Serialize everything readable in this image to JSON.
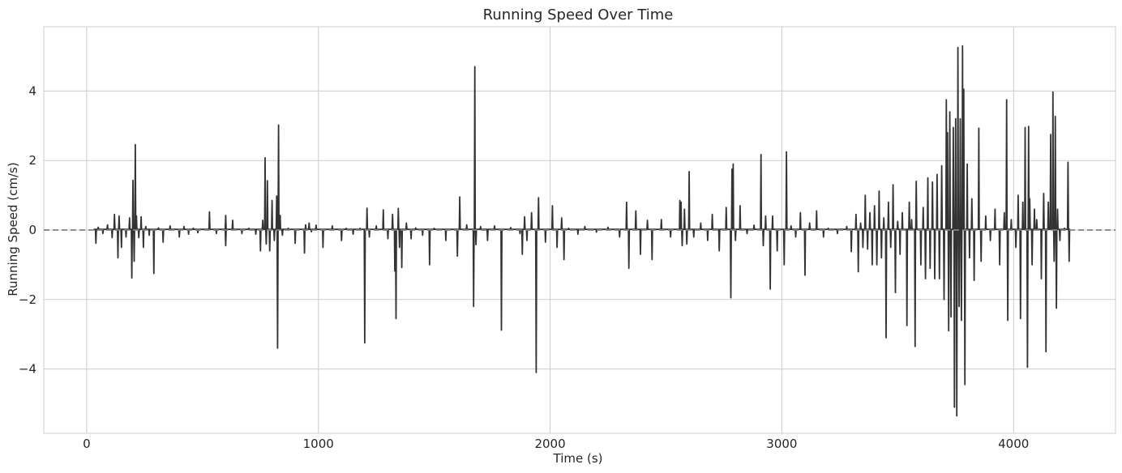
{
  "chart_data": {
    "type": "line",
    "title": "Running Speed Over Time",
    "xlabel": "Time (s)",
    "ylabel": "Running Speed (cm/s)",
    "xlim": [
      -185,
      4440
    ],
    "ylim": [
      -5.85,
      5.85
    ],
    "xticks": [
      0,
      1000,
      2000,
      3000,
      4000
    ],
    "xtick_labels": [
      "0",
      "1000",
      "2000",
      "3000",
      "4000"
    ],
    "yticks": [
      -4,
      -2,
      0,
      2,
      4
    ],
    "ytick_labels": [
      "−4",
      "−2",
      "0",
      "2",
      "4"
    ],
    "grid": true,
    "reference_line": {
      "y": 0,
      "style": "dashed",
      "color": "#808080"
    },
    "series": [
      {
        "color": "#333333",
        "spikes": [
          [
            40,
            -0.38
          ],
          [
            50,
            0.08
          ],
          [
            70,
            -0.1
          ],
          [
            90,
            0.15
          ],
          [
            110,
            -0.22
          ],
          [
            120,
            0.45
          ],
          [
            135,
            -0.8
          ],
          [
            140,
            0.4
          ],
          [
            150,
            -0.5
          ],
          [
            170,
            -0.2
          ],
          [
            185,
            0.35
          ],
          [
            195,
            -1.38
          ],
          [
            200,
            1.43
          ],
          [
            205,
            -0.9
          ],
          [
            210,
            2.46
          ],
          [
            215,
            0.4
          ],
          [
            225,
            -0.22
          ],
          [
            235,
            0.38
          ],
          [
            245,
            -0.5
          ],
          [
            255,
            0.1
          ],
          [
            270,
            -0.15
          ],
          [
            290,
            -1.25
          ],
          [
            310,
            0.06
          ],
          [
            330,
            -0.35
          ],
          [
            360,
            0.12
          ],
          [
            400,
            -0.2
          ],
          [
            420,
            0.1
          ],
          [
            440,
            -0.12
          ],
          [
            460,
            0.05
          ],
          [
            480,
            -0.08
          ],
          [
            530,
            0.52
          ],
          [
            560,
            -0.1
          ],
          [
            600,
            0.42
          ],
          [
            600,
            -0.45
          ],
          [
            630,
            0.28
          ],
          [
            670,
            -0.1
          ],
          [
            700,
            0.05
          ],
          [
            730,
            -0.12
          ],
          [
            750,
            -0.6
          ],
          [
            760,
            0.28
          ],
          [
            770,
            2.08
          ],
          [
            775,
            -0.4
          ],
          [
            780,
            1.42
          ],
          [
            790,
            -0.6
          ],
          [
            800,
            0.85
          ],
          [
            810,
            -0.3
          ],
          [
            820,
            0.98
          ],
          [
            824,
            -3.4
          ],
          [
            828,
            3.02
          ],
          [
            835,
            0.42
          ],
          [
            845,
            -0.15
          ],
          [
            870,
            0.05
          ],
          [
            900,
            -0.38
          ],
          [
            940,
            -0.66
          ],
          [
            945,
            0.15
          ],
          [
            960,
            0.2
          ],
          [
            970,
            -0.05
          ],
          [
            990,
            0.14
          ],
          [
            1020,
            -0.5
          ],
          [
            1060,
            0.12
          ],
          [
            1100,
            -0.3
          ],
          [
            1120,
            0.05
          ],
          [
            1150,
            -0.12
          ],
          [
            1180,
            0.05
          ],
          [
            1200,
            -3.25
          ],
          [
            1210,
            0.63
          ],
          [
            1220,
            -0.2
          ],
          [
            1250,
            0.12
          ],
          [
            1280,
            0.58
          ],
          [
            1300,
            -0.25
          ],
          [
            1320,
            0.45
          ],
          [
            1330,
            -1.18
          ],
          [
            1335,
            -2.55
          ],
          [
            1345,
            0.62
          ],
          [
            1350,
            -0.5
          ],
          [
            1360,
            -1.08
          ],
          [
            1380,
            0.2
          ],
          [
            1400,
            -0.25
          ],
          [
            1420,
            0.06
          ],
          [
            1450,
            -0.15
          ],
          [
            1480,
            -1.0
          ],
          [
            1500,
            0.05
          ],
          [
            1550,
            -0.3
          ],
          [
            1600,
            -0.75
          ],
          [
            1610,
            0.95
          ],
          [
            1640,
            0.15
          ],
          [
            1670,
            -2.2
          ],
          [
            1675,
            4.7
          ],
          [
            1680,
            -0.42
          ],
          [
            1700,
            0.1
          ],
          [
            1730,
            -0.3
          ],
          [
            1760,
            0.12
          ],
          [
            1790,
            -2.88
          ],
          [
            1830,
            0.07
          ],
          [
            1870,
            -0.1
          ],
          [
            1880,
            -0.7
          ],
          [
            1890,
            0.38
          ],
          [
            1900,
            -0.3
          ],
          [
            1920,
            0.5
          ],
          [
            1940,
            -4.1
          ],
          [
            1950,
            0.93
          ],
          [
            1980,
            -0.35
          ],
          [
            2010,
            0.7
          ],
          [
            2030,
            -0.5
          ],
          [
            2050,
            0.35
          ],
          [
            2060,
            -0.85
          ],
          [
            2080,
            0.05
          ],
          [
            2120,
            -0.12
          ],
          [
            2150,
            0.1
          ],
          [
            2200,
            -0.06
          ],
          [
            2250,
            0.08
          ],
          [
            2300,
            -0.2
          ],
          [
            2330,
            0.8
          ],
          [
            2340,
            -1.1
          ],
          [
            2370,
            0.55
          ],
          [
            2390,
            -0.7
          ],
          [
            2420,
            0.28
          ],
          [
            2440,
            -0.85
          ],
          [
            2480,
            0.3
          ],
          [
            2520,
            -0.2
          ],
          [
            2560,
            0.85
          ],
          [
            2565,
            0.8
          ],
          [
            2570,
            -0.45
          ],
          [
            2580,
            0.6
          ],
          [
            2590,
            -0.4
          ],
          [
            2600,
            1.68
          ],
          [
            2620,
            -0.2
          ],
          [
            2650,
            0.2
          ],
          [
            2680,
            -0.3
          ],
          [
            2700,
            0.45
          ],
          [
            2730,
            -0.6
          ],
          [
            2760,
            0.65
          ],
          [
            2780,
            -1.95
          ],
          [
            2785,
            1.75
          ],
          [
            2790,
            1.9
          ],
          [
            2800,
            -0.3
          ],
          [
            2820,
            0.7
          ],
          [
            2850,
            -0.1
          ],
          [
            2880,
            0.14
          ],
          [
            2910,
            2.17
          ],
          [
            2920,
            -0.45
          ],
          [
            2930,
            0.4
          ],
          [
            2950,
            -1.7
          ],
          [
            2960,
            0.4
          ],
          [
            2980,
            -0.6
          ],
          [
            3010,
            -1.0
          ],
          [
            3020,
            2.25
          ],
          [
            3040,
            0.12
          ],
          [
            3060,
            -0.2
          ],
          [
            3080,
            0.5
          ],
          [
            3100,
            -1.3
          ],
          [
            3120,
            0.2
          ],
          [
            3150,
            0.55
          ],
          [
            3180,
            -0.2
          ],
          [
            3200,
            0.05
          ],
          [
            3240,
            -0.1
          ],
          [
            3280,
            0.1
          ],
          [
            3300,
            -0.62
          ],
          [
            3320,
            0.45
          ],
          [
            3330,
            -1.2
          ],
          [
            3340,
            0.2
          ],
          [
            3350,
            -0.5
          ],
          [
            3360,
            1.0
          ],
          [
            3370,
            -0.55
          ],
          [
            3380,
            0.5
          ],
          [
            3390,
            -1.0
          ],
          [
            3400,
            0.7
          ],
          [
            3410,
            -1.0
          ],
          [
            3420,
            1.12
          ],
          [
            3430,
            -0.8
          ],
          [
            3440,
            0.35
          ],
          [
            3450,
            -3.1
          ],
          [
            3460,
            0.8
          ],
          [
            3470,
            -0.5
          ],
          [
            3480,
            1.3
          ],
          [
            3490,
            -1.8
          ],
          [
            3500,
            0.25
          ],
          [
            3510,
            -0.7
          ],
          [
            3520,
            0.5
          ],
          [
            3540,
            -2.75
          ],
          [
            3550,
            0.8
          ],
          [
            3560,
            0.3
          ],
          [
            3575,
            -3.35
          ],
          [
            3580,
            1.4
          ],
          [
            3600,
            -1.0
          ],
          [
            3610,
            0.65
          ],
          [
            3620,
            -1.4
          ],
          [
            3630,
            1.5
          ],
          [
            3640,
            -1.1
          ],
          [
            3650,
            1.38
          ],
          [
            3660,
            -1.4
          ],
          [
            3670,
            1.6
          ],
          [
            3680,
            -1.4
          ],
          [
            3690,
            1.85
          ],
          [
            3700,
            -2.0
          ],
          [
            3710,
            3.75
          ],
          [
            3715,
            2.8
          ],
          [
            3720,
            -2.9
          ],
          [
            3725,
            3.4
          ],
          [
            3730,
            -2.5
          ],
          [
            3740,
            2.95
          ],
          [
            3745,
            -5.1
          ],
          [
            3750,
            3.2
          ],
          [
            3755,
            -5.35
          ],
          [
            3760,
            5.25
          ],
          [
            3765,
            -2.2
          ],
          [
            3770,
            3.2
          ],
          [
            3775,
            -2.6
          ],
          [
            3780,
            5.3
          ],
          [
            3785,
            4.05
          ],
          [
            3790,
            -4.45
          ],
          [
            3800,
            1.9
          ],
          [
            3810,
            -0.8
          ],
          [
            3820,
            0.9
          ],
          [
            3830,
            -1.45
          ],
          [
            3850,
            2.93
          ],
          [
            3860,
            -0.9
          ],
          [
            3880,
            0.4
          ],
          [
            3900,
            -0.3
          ],
          [
            3920,
            0.6
          ],
          [
            3940,
            -1.0
          ],
          [
            3960,
            0.5
          ],
          [
            3970,
            3.75
          ],
          [
            3975,
            -2.6
          ],
          [
            3990,
            0.3
          ],
          [
            4010,
            -0.5
          ],
          [
            4020,
            1.0
          ],
          [
            4030,
            -2.55
          ],
          [
            4040,
            0.8
          ],
          [
            4050,
            2.95
          ],
          [
            4060,
            -3.95
          ],
          [
            4065,
            2.98
          ],
          [
            4070,
            0.9
          ],
          [
            4080,
            -1.0
          ],
          [
            4090,
            0.6
          ],
          [
            4100,
            0.3
          ],
          [
            4120,
            -1.4
          ],
          [
            4130,
            1.05
          ],
          [
            4140,
            -3.5
          ],
          [
            4150,
            0.8
          ],
          [
            4160,
            2.75
          ],
          [
            4170,
            3.97
          ],
          [
            4175,
            -0.9
          ],
          [
            4180,
            3.27
          ],
          [
            4185,
            -2.25
          ],
          [
            4190,
            0.6
          ],
          [
            4200,
            -0.3
          ],
          [
            4220,
            0.05
          ],
          [
            4235,
            1.95
          ],
          [
            4240,
            -0.9
          ]
        ]
      }
    ]
  }
}
